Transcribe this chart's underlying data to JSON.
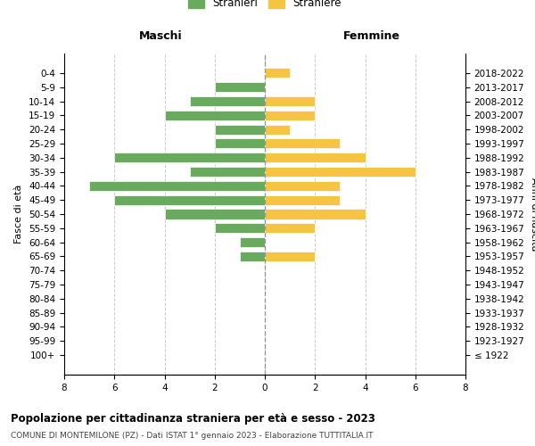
{
  "age_groups": [
    "100+",
    "95-99",
    "90-94",
    "85-89",
    "80-84",
    "75-79",
    "70-74",
    "65-69",
    "60-64",
    "55-59",
    "50-54",
    "45-49",
    "40-44",
    "35-39",
    "30-34",
    "25-29",
    "20-24",
    "15-19",
    "10-14",
    "5-9",
    "0-4"
  ],
  "birth_years": [
    "≤ 1922",
    "1923-1927",
    "1928-1932",
    "1933-1937",
    "1938-1942",
    "1943-1947",
    "1948-1952",
    "1953-1957",
    "1958-1962",
    "1963-1967",
    "1968-1972",
    "1973-1977",
    "1978-1982",
    "1983-1987",
    "1988-1992",
    "1993-1997",
    "1998-2002",
    "2003-2007",
    "2008-2012",
    "2013-2017",
    "2018-2022"
  ],
  "males": [
    0,
    0,
    0,
    0,
    0,
    0,
    0,
    1,
    1,
    2,
    4,
    6,
    7,
    3,
    6,
    2,
    2,
    4,
    3,
    2,
    0
  ],
  "females": [
    0,
    0,
    0,
    0,
    0,
    0,
    0,
    2,
    0,
    2,
    4,
    3,
    3,
    6,
    4,
    3,
    1,
    2,
    2,
    0,
    1
  ],
  "male_color": "#6aaa5e",
  "female_color": "#f5c542",
  "title_main": "Popolazione per cittadinanza straniera per età e sesso - 2023",
  "title_sub": "COMUNE DI MONTEMILONE (PZ) - Dati ISTAT 1° gennaio 2023 - Elaborazione TUTTITALIA.IT",
  "legend_male": "Stranieri",
  "legend_female": "Straniere",
  "ylabel_left": "Fasce di età",
  "ylabel_right": "Anni di nascita",
  "xlabel_left": "Maschi",
  "xlabel_right": "Femmine",
  "xlim": 8,
  "background_color": "#ffffff",
  "grid_color": "#cccccc"
}
